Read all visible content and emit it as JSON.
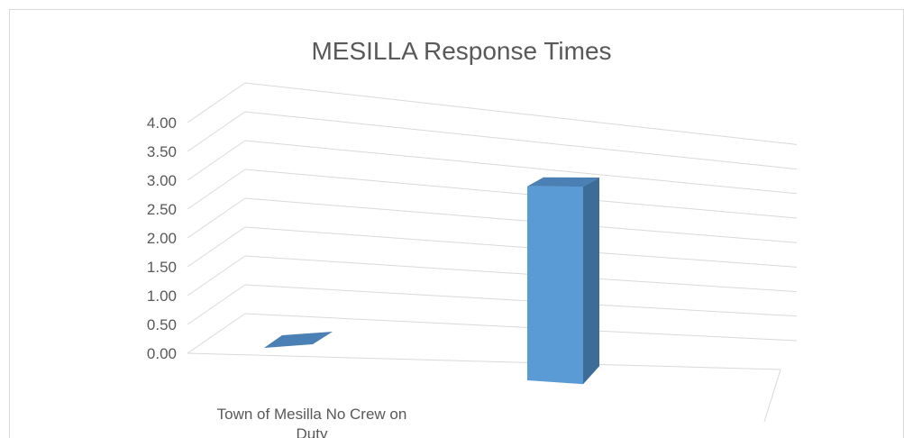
{
  "chart_data": {
    "type": "bar",
    "title": "MESILLA Response Times",
    "categories": [
      "Town of Mesilla No Crew on Duty",
      ""
    ],
    "series": [
      {
        "values": [
          0.0,
          3.3
        ]
      }
    ],
    "ylim": [
      0,
      4
    ],
    "yticks": [
      "0.00",
      "0.50",
      "1.00",
      "1.50",
      "2.00",
      "2.50",
      "3.00",
      "3.50",
      "4.00"
    ],
    "grid": true,
    "legend": "none",
    "style": "3d-column",
    "colors": {
      "bar_front": "#5b9bd5",
      "bar_side": "#3d6c99",
      "bar_top": "#4a80b4",
      "grid": "#d9d9d9",
      "text": "#595959",
      "border": "#d9d9d9"
    }
  }
}
